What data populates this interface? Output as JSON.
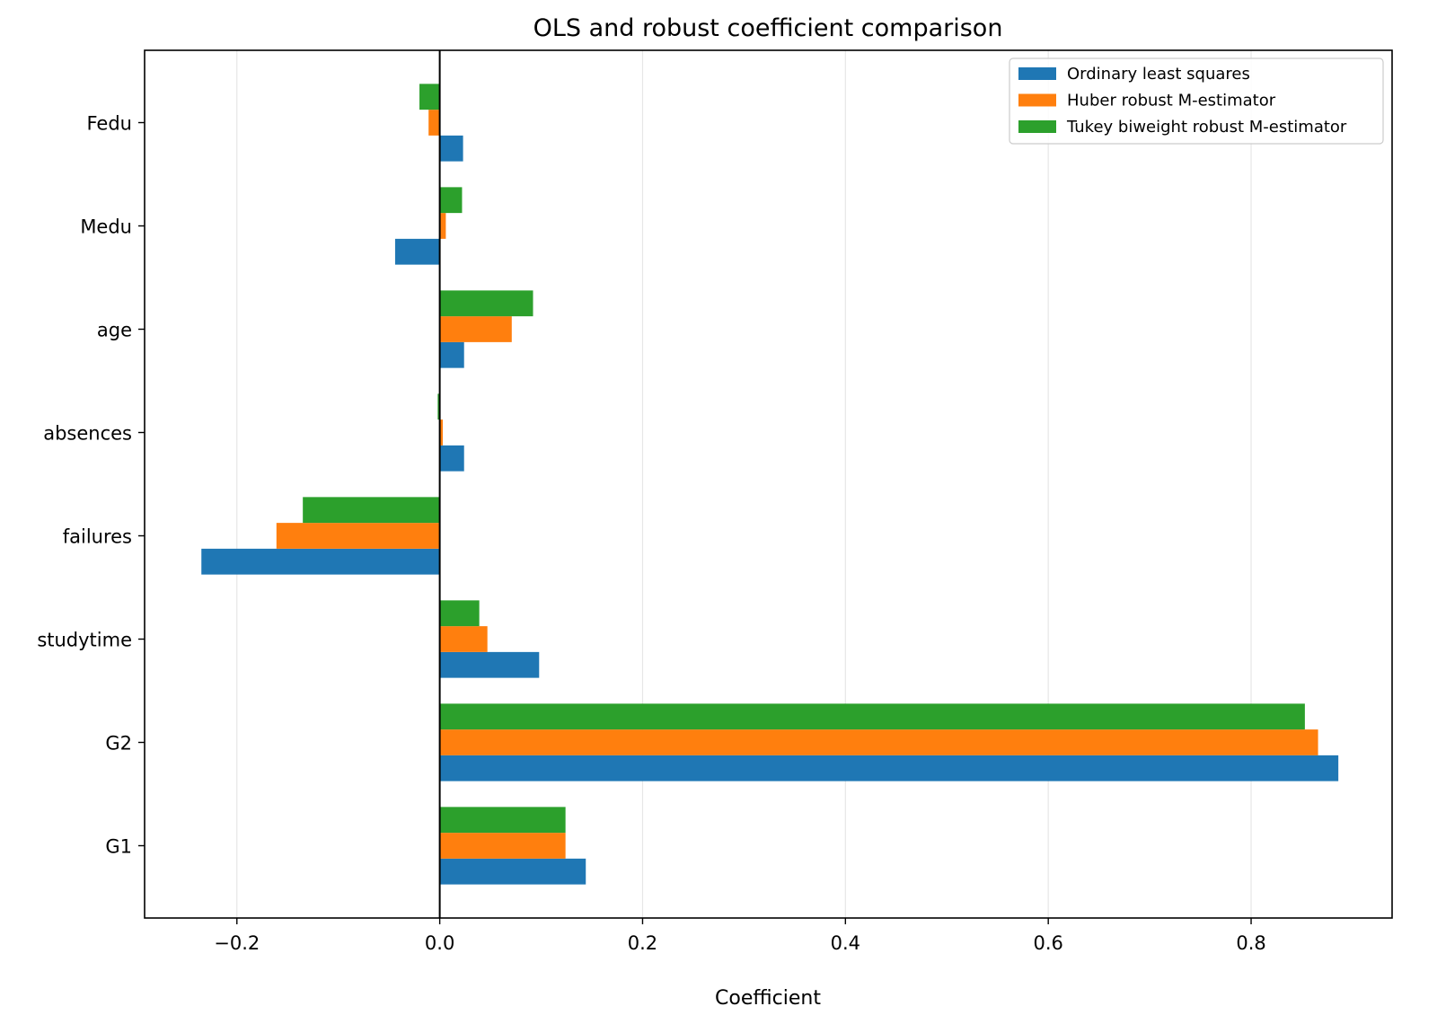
{
  "chart_data": {
    "type": "bar",
    "orientation": "horizontal",
    "title": "OLS and robust coefficient comparison",
    "xlabel": "Coefficient",
    "ylabel": "",
    "categories": [
      "G1",
      "G2",
      "studytime",
      "failures",
      "absences",
      "age",
      "Medu",
      "Fedu"
    ],
    "series": [
      {
        "name": "Ordinary least squares",
        "color": "#1f77b4",
        "values": [
          0.144,
          0.886,
          0.098,
          -0.235,
          0.024,
          0.024,
          -0.044,
          0.023
        ]
      },
      {
        "name": "Huber robust M-estimator",
        "color": "#ff7f0e",
        "values": [
          0.124,
          0.866,
          0.047,
          -0.161,
          0.003,
          0.071,
          0.006,
          -0.011
        ]
      },
      {
        "name": "Tukey biweight robust M-estimator",
        "color": "#2ca02c",
        "values": [
          0.124,
          0.853,
          0.039,
          -0.135,
          -0.002,
          0.092,
          0.022,
          -0.02
        ]
      }
    ],
    "xlim": [
      -0.291,
      0.939
    ],
    "xticks": [
      -0.2,
      0.0,
      0.2,
      0.4,
      0.6,
      0.8
    ],
    "xtick_labels": [
      "−0.2",
      "0.0",
      "0.2",
      "0.4",
      "0.6",
      "0.8"
    ],
    "zero_line": true,
    "grid": "vertical",
    "legend_position": "top-right"
  }
}
